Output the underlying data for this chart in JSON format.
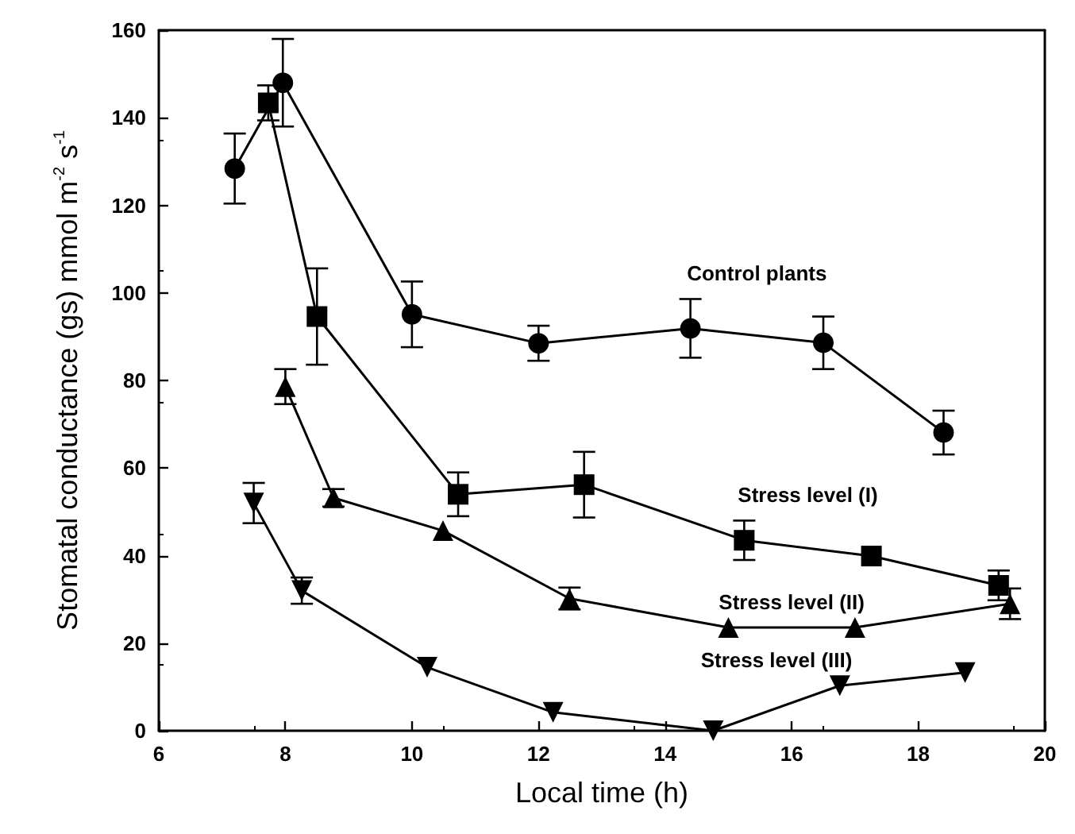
{
  "chart_data": {
    "type": "line",
    "xlabel": "Local time (h)",
    "ylabel": "Stomatal conductance (gs) mmol m$^{-2}$ s$^{-1}$",
    "xlim": [
      6,
      20
    ],
    "xticks": [
      6,
      8,
      10,
      12,
      14,
      16,
      18,
      20
    ],
    "ylim": [
      0,
      160
    ],
    "yticks": [
      0,
      20,
      40,
      60,
      80,
      100,
      120,
      140,
      160
    ],
    "grid": false,
    "series": [
      {
        "name": "Control plants",
        "color": "#000000",
        "marker": "circle",
        "x": [
          7.2,
          7.96,
          10.0,
          12.0,
          14.4,
          16.5,
          18.4
        ],
        "values": [
          128.4,
          148,
          95.1,
          88.5,
          91.9,
          88.6,
          68.1
        ],
        "errors": [
          8,
          10,
          7.5,
          4,
          6.7,
          6,
          5
        ]
      },
      {
        "name": "Stress level (I)",
        "color": "#000000",
        "marker": "square",
        "x": [
          7.73,
          8.5,
          10.73,
          12.72,
          15.25,
          17.26,
          19.27
        ],
        "values": [
          143.4,
          94.6,
          54,
          56.2,
          43.5,
          39.9,
          33.2
        ],
        "errors": [
          4,
          11,
          5,
          7.5,
          4.5,
          null,
          3.4
        ]
      },
      {
        "name": "Stress level (II)",
        "color": "#000000",
        "marker": "triangle",
        "x": [
          8.0,
          8.76,
          10.49,
          12.49,
          15.0,
          17.0,
          19.45
        ],
        "values": [
          78.6,
          53.2,
          45.7,
          30.2,
          23.6,
          23.6,
          29
        ],
        "errors": [
          4,
          2,
          null,
          2.5,
          null,
          null,
          3.5
        ]
      },
      {
        "name": "Stress level (III)",
        "color": "#000000",
        "marker": "triangle_down",
        "x": [
          7.5,
          8.26,
          10.24,
          12.23,
          14.76,
          16.76,
          18.74
        ],
        "values": [
          52,
          32,
          14.5,
          4.2,
          0,
          10.3,
          13.3
        ],
        "errors": [
          4.6,
          3,
          null,
          null,
          null,
          null,
          null
        ]
      }
    ]
  }
}
